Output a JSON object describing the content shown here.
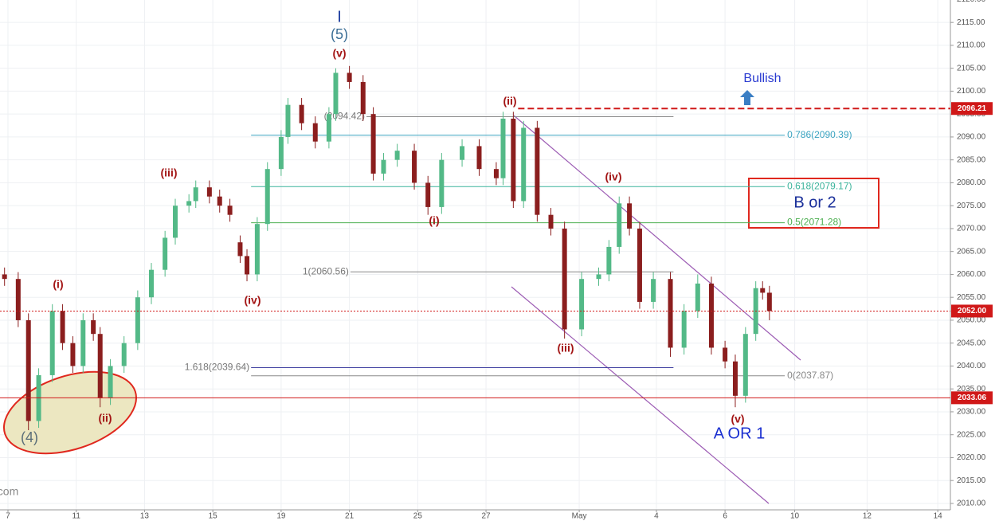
{
  "chart_data": {
    "type": "candlestick",
    "x": [
      -0.1,
      0.3,
      0.6,
      0.9,
      1.3,
      1.6,
      1.9,
      2.2,
      2.5,
      2.7,
      3.0,
      3.4,
      3.8,
      4.2,
      4.6,
      4.9,
      5.3,
      5.5,
      5.9,
      6.2,
      6.5,
      6.8,
      7.0,
      7.3,
      7.6,
      8.0,
      8.2,
      8.6,
      9.0,
      9.4,
      9.6,
      10.0,
      10.4,
      10.7,
      11.0,
      11.4,
      11.9,
      12.3,
      12.7,
      13.3,
      13.8,
      14.3,
      14.5,
      14.8,
      15.1,
      15.5,
      15.9,
      16.3,
      16.8,
      17.3,
      17.6,
      17.9,
      18.2,
      18.5,
      18.9,
      19.4,
      19.8,
      20.2,
      20.6,
      21.0,
      21.3,
      21.6,
      21.9,
      22.1,
      22.3
    ],
    "open": [
      2060,
      2059,
      2050,
      2028,
      2038,
      2052,
      2045,
      2040,
      2050,
      2047,
      2033,
      2040,
      2045,
      2055,
      2061,
      2068,
      2075,
      2076,
      2079,
      2077,
      2075,
      2067,
      2064,
      2060,
      2071,
      2083,
      2090,
      2097,
      2093,
      2089,
      2095,
      2104,
      2102,
      2095,
      2082,
      2085,
      2087,
      2080,
      2074.7,
      2085,
      2088,
      2083,
      2081,
      2094,
      2076,
      2092,
      2073,
      2070,
      2048,
      2059,
      2060,
      2066,
      2075.5,
      2070,
      2054,
      2059,
      2044,
      2052,
      2058,
      2044,
      2041,
      2033.5,
      2047,
      2057,
      2056
    ],
    "high": [
      2061.5,
      2060.5,
      2051.5,
      2039.5,
      2053.5,
      2053.5,
      2046.5,
      2051.5,
      2051.5,
      2048.5,
      2041.5,
      2046.5,
      2056.5,
      2062.5,
      2069.5,
      2076.5,
      2077.5,
      2080.5,
      2080.5,
      2078.5,
      2076.5,
      2068.5,
      2065.5,
      2072.5,
      2084.5,
      2091.5,
      2098.5,
      2098.5,
      2094.5,
      2096.5,
      2105,
      2105.5,
      2103.5,
      2096.5,
      2086.5,
      2088.5,
      2088.5,
      2081.5,
      2086.5,
      2089.5,
      2089.5,
      2084.5,
      2095.5,
      2095.5,
      2093.5,
      2093.5,
      2074.5,
      2071.5,
      2060.5,
      2061.5,
      2067.5,
      2077,
      2077,
      2071.5,
      2060.5,
      2060.5,
      2053.5,
      2060,
      2059.5,
      2045.5,
      2042.5,
      2048.5,
      2058.5,
      2058.5,
      2057.5
    ],
    "low": [
      2057.5,
      2048.5,
      2026,
      2026.5,
      2036.5,
      2043.5,
      2038.5,
      2038.5,
      2045.5,
      2031,
      2031.5,
      2038.5,
      2043.5,
      2053.5,
      2059.5,
      2066.5,
      2073.5,
      2074.5,
      2075.5,
      2073.5,
      2071.5,
      2062.5,
      2058.5,
      2058.5,
      2069.5,
      2081.5,
      2088.5,
      2091.5,
      2087.5,
      2087.5,
      2093.5,
      2100.5,
      2093.5,
      2080.5,
      2080.5,
      2083.5,
      2078.5,
      2073,
      2073.2,
      2083.5,
      2081.5,
      2079.5,
      2079.5,
      2074.5,
      2074.5,
      2071.5,
      2068.5,
      2046,
      2046.5,
      2057.5,
      2058.5,
      2064.5,
      2068.5,
      2052.5,
      2052.5,
      2042,
      2042.5,
      2050.5,
      2042.5,
      2039.5,
      2031,
      2032,
      2045.5,
      2054.5,
      2050
    ],
    "close": [
      2059,
      2050,
      2028,
      2038,
      2052,
      2045,
      2040,
      2050,
      2047,
      2033,
      2040,
      2045,
      2055,
      2061,
      2068,
      2075,
      2076,
      2079,
      2077,
      2075,
      2073,
      2064,
      2060,
      2071,
      2083,
      2090,
      2097,
      2093,
      2089,
      2095,
      2104,
      2102,
      2095,
      2082,
      2085,
      2087,
      2080,
      2074.7,
      2085,
      2088,
      2083,
      2081,
      2094,
      2076,
      2092,
      2073,
      2070,
      2048,
      2059,
      2060,
      2066,
      2075.5,
      2070,
      2054,
      2059,
      2044,
      2052,
      2058,
      2044,
      2041,
      2033.5,
      2047,
      2057,
      2056,
      2052
    ],
    "up_color": "#53b987",
    "down_color": "#8b1e1e",
    "xlim": [
      -0.233,
      27.6
    ],
    "ylim": [
      2008.6,
      2119.9
    ],
    "xticks": [
      {
        "value": 0,
        "label": "7"
      },
      {
        "value": 2,
        "label": "11"
      },
      {
        "value": 4,
        "label": "13"
      },
      {
        "value": 6,
        "label": "15"
      },
      {
        "value": 8,
        "label": "19"
      },
      {
        "value": 10,
        "label": "21"
      },
      {
        "value": 12,
        "label": "25"
      },
      {
        "value": 14,
        "label": "27"
      },
      {
        "value": 16.73,
        "label": "May"
      },
      {
        "value": 18.99,
        "label": "4"
      },
      {
        "value": 21,
        "label": "6"
      },
      {
        "value": 23.04,
        "label": "10"
      },
      {
        "value": 25.16,
        "label": "12"
      },
      {
        "value": 27.23,
        "label": "14"
      }
    ],
    "yticks": [
      {
        "value": 2010,
        "label": "2010.00"
      },
      {
        "value": 2015,
        "label": "2015.00"
      },
      {
        "value": 2020,
        "label": "2020.00"
      },
      {
        "value": 2025,
        "label": "2025.00"
      },
      {
        "value": 2030,
        "label": "2030.00"
      },
      {
        "value": 2035,
        "label": "2035.00"
      },
      {
        "value": 2040,
        "label": "2040.00"
      },
      {
        "value": 2045,
        "label": "2045.00"
      },
      {
        "value": 2050,
        "label": "2050.00"
      },
      {
        "value": 2055,
        "label": "2055.00"
      },
      {
        "value": 2060,
        "label": "2060.00"
      },
      {
        "value": 2065,
        "label": "2065.00"
      },
      {
        "value": 2070,
        "label": "2070.00"
      },
      {
        "value": 2075,
        "label": "2075.00"
      },
      {
        "value": 2080,
        "label": "2080.00"
      },
      {
        "value": 2085,
        "label": "2085.00"
      },
      {
        "value": 2090,
        "label": "2090.00"
      },
      {
        "value": 2095,
        "label": "2095.00"
      },
      {
        "value": 2100,
        "label": "2100.00"
      },
      {
        "value": 2105,
        "label": "2105.00"
      },
      {
        "value": 2110,
        "label": "2110.00"
      },
      {
        "value": 2115,
        "label": "2115.00"
      },
      {
        "value": 2120,
        "label": "2120.00"
      }
    ],
    "grid": true,
    "levels": [
      {
        "label": "(2094.42)",
        "value": 2094.42,
        "color": "#888888",
        "from": 10.5,
        "to": 19.49,
        "label_side": "left"
      },
      {
        "label": "0.786(2090.39)",
        "value": 2090.39,
        "color": "#3aa3c0",
        "from": 7.12,
        "to": 22.75,
        "label_side": "right"
      },
      {
        "label": "0.618(2079.17)",
        "value": 2079.17,
        "color": "#3ab39b",
        "from": 7.12,
        "to": 22.75,
        "label_side": "right"
      },
      {
        "label": "0.5(2071.28)",
        "value": 2071.28,
        "color": "#4caf50",
        "from": 7.12,
        "to": 22.75,
        "label_side": "right"
      },
      {
        "label": "1(2060.56)",
        "value": 2060.56,
        "color": "#888888",
        "from": 10.03,
        "to": 19.49,
        "label_side": "left"
      },
      {
        "label": "1.618(2039.64)",
        "value": 2039.64,
        "color": "#3f3fa0",
        "from": 7.12,
        "to": 19.49,
        "label_side": "left"
      },
      {
        "label": "0(2037.87)",
        "value": 2037.87,
        "color": "#888888",
        "from": 7.12,
        "to": 22.75,
        "label_side": "right"
      }
    ],
    "price_lines": [
      {
        "value": 2096.21,
        "style": "dashed",
        "from": 14.94
      },
      {
        "value": 2052,
        "label": "2052.00",
        "style": "dotted"
      },
      {
        "value": 2033.06,
        "style": "solid"
      }
    ],
    "annotations": [
      "I",
      "(5)",
      "(v)",
      "(iii)",
      "(i)",
      "(ii)",
      "(iv)",
      "(4)",
      "(ii)",
      "(i)",
      "(iv)",
      "(iii)",
      "(v)",
      "A OR 1",
      "Bullish",
      "B or 2",
      "com"
    ]
  }
}
